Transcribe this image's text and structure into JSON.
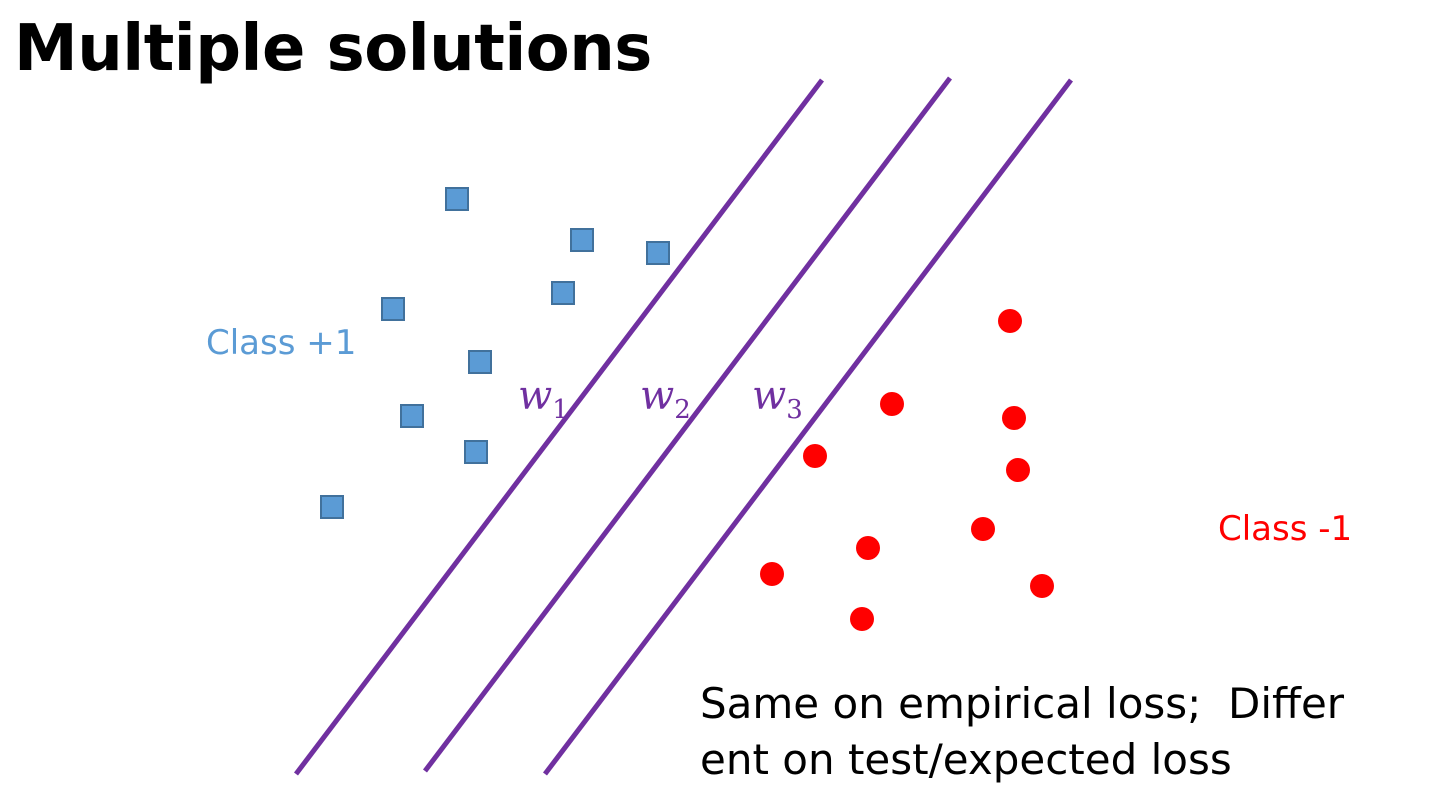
{
  "title": "Multiple solutions",
  "caption_line1": "Same on empirical loss;  Differ",
  "caption_line2": "ent on test/expected loss",
  "colors": {
    "class_pos": "#5b9bd5",
    "class_pos_stroke": "#41719c",
    "class_neg": "#ff0000",
    "boundary": "#7030a0"
  },
  "diagram": {
    "classes": [
      {
        "id": "pos",
        "label": "Class +1",
        "marker": "square"
      },
      {
        "id": "neg",
        "label": "Class -1",
        "marker": "circle"
      }
    ],
    "boundaries": [
      {
        "id": "w1",
        "symbol": "w",
        "subscript": "1"
      },
      {
        "id": "w2",
        "symbol": "w",
        "subscript": "2"
      },
      {
        "id": "w3",
        "symbol": "w",
        "subscript": "3"
      }
    ]
  }
}
